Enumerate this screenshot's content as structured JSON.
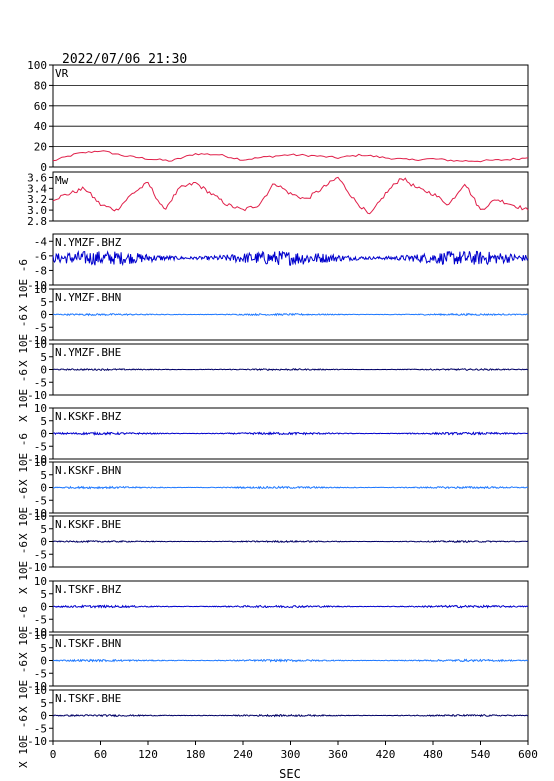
{
  "header": {
    "timestamp": "2022/07/06 21:30"
  },
  "x_axis": {
    "label": "SEC",
    "ticks": [
      0,
      60,
      120,
      180,
      240,
      300,
      360,
      420,
      480,
      540,
      600
    ],
    "range": [
      0,
      600
    ]
  },
  "seismo_unit_label": "X 10E -6",
  "chart_data": [
    {
      "type": "line",
      "name": "VR",
      "title": "VR",
      "ylim": [
        0,
        100
      ],
      "yticks": [
        0,
        20,
        40,
        60,
        80,
        100
      ],
      "grid": true,
      "color": "#e0204a",
      "x": [
        0,
        30,
        60,
        90,
        120,
        150,
        180,
        210,
        240,
        270,
        300,
        330,
        360,
        390,
        420,
        450,
        480,
        510,
        540,
        570,
        600
      ],
      "values": [
        6,
        13,
        16,
        11,
        8,
        6,
        13,
        12,
        7,
        10,
        12,
        11,
        9,
        12,
        9,
        7,
        8,
        6,
        6,
        7,
        9
      ]
    },
    {
      "type": "line",
      "name": "Mw",
      "title": "Mw",
      "ylim": [
        2.8,
        3.7
      ],
      "yticks": [
        2.8,
        3.0,
        3.2,
        3.4,
        3.6
      ],
      "grid": false,
      "color": "#e0204a",
      "x": [
        0,
        20,
        40,
        60,
        80,
        100,
        120,
        140,
        160,
        180,
        200,
        220,
        240,
        260,
        280,
        300,
        320,
        340,
        360,
        380,
        400,
        420,
        440,
        460,
        480,
        500,
        520,
        540,
        560,
        580,
        600
      ],
      "values": [
        3.2,
        3.3,
        3.4,
        3.1,
        3.0,
        3.3,
        3.5,
        3.0,
        3.4,
        3.5,
        3.3,
        3.1,
        3.0,
        3.1,
        3.5,
        3.3,
        3.2,
        3.4,
        3.6,
        3.2,
        2.9,
        3.3,
        3.6,
        3.4,
        3.3,
        3.1,
        3.5,
        3.0,
        3.2,
        3.1,
        3.0
      ]
    },
    {
      "type": "line",
      "name": "N.YMZF.BHZ",
      "title": "N.YMZF.BHZ",
      "ylim": [
        -10,
        -3
      ],
      "yticks": [
        -4,
        -6,
        -8,
        -10
      ],
      "color": "#0000cc",
      "mean": -6.3,
      "amplitude": 1.0
    },
    {
      "type": "line",
      "name": "N.YMZF.BHN",
      "title": "N.YMZF.BHN",
      "ylim": [
        -10,
        10
      ],
      "yticks": [
        10,
        5,
        0,
        -5,
        -10
      ],
      "color": "#1e78ff",
      "mean": 0,
      "amplitude": 0.35
    },
    {
      "type": "line",
      "name": "N.YMZF.BHE",
      "title": "N.YMZF.BHE",
      "ylim": [
        -10,
        10
      ],
      "yticks": [
        10,
        5,
        0,
        -5,
        -10
      ],
      "color": "#000066",
      "mean": 0,
      "amplitude": 0.3
    },
    {
      "type": "line",
      "name": "N.KSKF.BHZ",
      "title": "N.KSKF.BHZ",
      "ylim": [
        -10,
        10
      ],
      "yticks": [
        10,
        5,
        0,
        -5,
        -10
      ],
      "color": "#0000cc",
      "mean": 0,
      "amplitude": 0.45
    },
    {
      "type": "line",
      "name": "N.KSKF.BHN",
      "title": "N.KSKF.BHN",
      "ylim": [
        -10,
        10
      ],
      "yticks": [
        10,
        5,
        0,
        -5,
        -10
      ],
      "color": "#1e78ff",
      "mean": 0,
      "amplitude": 0.4
    },
    {
      "type": "line",
      "name": "N.KSKF.BHE",
      "title": "N.KSKF.BHE",
      "ylim": [
        -10,
        10
      ],
      "yticks": [
        10,
        5,
        0,
        -5,
        -10
      ],
      "color": "#000066",
      "mean": 0,
      "amplitude": 0.3
    },
    {
      "type": "line",
      "name": "N.TSKF.BHZ",
      "title": "N.TSKF.BHZ",
      "ylim": [
        -10,
        10
      ],
      "yticks": [
        10,
        5,
        0,
        -5,
        -10
      ],
      "color": "#0000cc",
      "mean": 0,
      "amplitude": 0.45
    },
    {
      "type": "line",
      "name": "N.TSKF.BHN",
      "title": "N.TSKF.BHN",
      "ylim": [
        -10,
        10
      ],
      "yticks": [
        10,
        5,
        0,
        -5,
        -10
      ],
      "color": "#1e78ff",
      "mean": 0,
      "amplitude": 0.4
    },
    {
      "type": "line",
      "name": "N.TSKF.BHE",
      "title": "N.TSKF.BHE",
      "ylim": [
        -10,
        10
      ],
      "yticks": [
        10,
        5,
        0,
        -5,
        -10
      ],
      "color": "#000066",
      "mean": 0,
      "amplitude": 0.35
    }
  ]
}
